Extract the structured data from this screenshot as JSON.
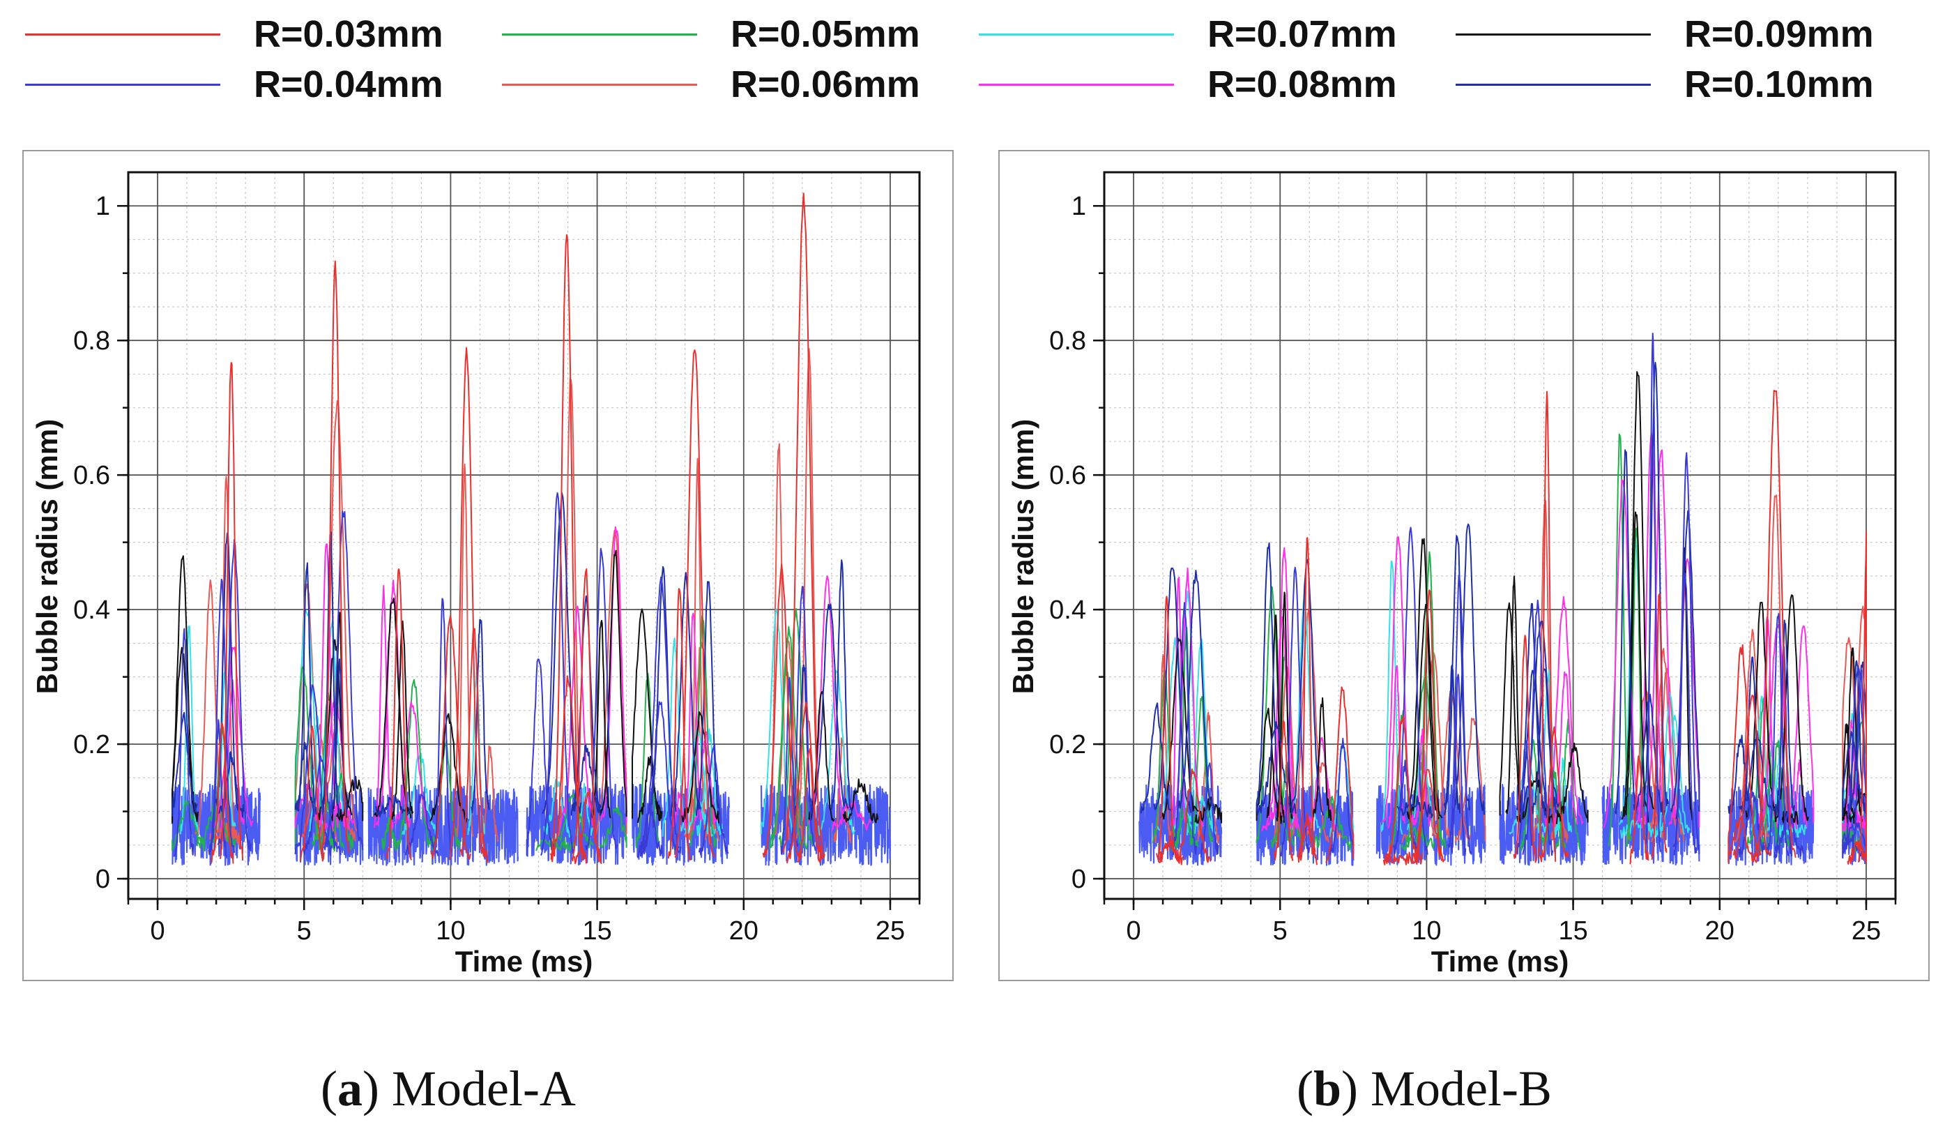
{
  "legend": {
    "items": [
      {
        "label": "R=0.03mm",
        "color": "#e8312f"
      },
      {
        "label": "R=0.04mm",
        "color": "#3a3ad6"
      },
      {
        "label": "R=0.05mm",
        "color": "#22b14c"
      },
      {
        "label": "R=0.06mm",
        "color": "#e85a55"
      },
      {
        "label": "R=0.07mm",
        "color": "#36e0e8"
      },
      {
        "label": "R=0.08mm",
        "color": "#ff2ee8"
      },
      {
        "label": "R=0.09mm",
        "color": "#111111"
      },
      {
        "label": "R=0.10mm",
        "color": "#1e2fa8"
      }
    ]
  },
  "captions": {
    "a": {
      "letter": "a",
      "text": "Model-A"
    },
    "b": {
      "letter": "b",
      "text": "Model-B"
    }
  },
  "chart_data": [
    {
      "type": "line",
      "panel": "(a) Model-A",
      "xlabel": "Time (ms)",
      "ylabel": "Bubble radius (mm)",
      "xlim": [
        -1,
        26
      ],
      "ylim": [
        -0.03,
        1.05
      ],
      "xticks": [
        0,
        5,
        10,
        15,
        20,
        25
      ],
      "yticks": [
        0,
        0.2,
        0.4,
        0.6,
        0.8,
        1
      ],
      "grid": true,
      "bursts": [
        {
          "t0": 0.5,
          "t1": 3.5,
          "peak": 0.77,
          "peak_t": 2.4,
          "blue_peak": 0.52
        },
        {
          "t0": 4.7,
          "t1": 7.0,
          "peak": 0.91,
          "peak_t": 6.1,
          "blue_peak": 0.56
        },
        {
          "t0": 7.2,
          "t1": 12.3,
          "peak": 0.78,
          "peak_t": 10.4,
          "blue_peak": 0.45
        },
        {
          "t0": 12.6,
          "t1": 16.0,
          "peak": 0.96,
          "peak_t": 14.0,
          "blue_peak": 0.57
        },
        {
          "t0": 16.2,
          "t1": 19.5,
          "peak": 0.79,
          "peak_t": 18.4,
          "blue_peak": 0.49
        },
        {
          "t0": 20.6,
          "t1": 25.0,
          "peak": 1.01,
          "peak_t": 22.1,
          "blue_peak": 0.51
        }
      ],
      "series": [
        {
          "name": "R=0.03mm",
          "color": "#e8312f",
          "base": 0.03
        },
        {
          "name": "R=0.04mm",
          "color": "#3a3ad6",
          "base": 0.04
        },
        {
          "name": "R=0.05mm",
          "color": "#22b14c",
          "base": 0.05
        },
        {
          "name": "R=0.06mm",
          "color": "#e85a55",
          "base": 0.06
        },
        {
          "name": "R=0.07mm",
          "color": "#36e0e8",
          "base": 0.07
        },
        {
          "name": "R=0.08mm",
          "color": "#ff2ee8",
          "base": 0.08
        },
        {
          "name": "R=0.09mm",
          "color": "#111111",
          "base": 0.09
        },
        {
          "name": "R=0.10mm",
          "color": "#1e2fa8",
          "base": 0.1
        }
      ]
    },
    {
      "type": "line",
      "panel": "(b) Model-B",
      "xlabel": "Time (ms)",
      "ylabel": "Bubble radius (mm)",
      "xlim": [
        -1,
        26
      ],
      "ylim": [
        -0.03,
        1.05
      ],
      "xticks": [
        0,
        5,
        10,
        15,
        20,
        25
      ],
      "yticks": [
        0,
        0.2,
        0.4,
        0.6,
        0.8,
        1
      ],
      "grid": true,
      "bursts": [
        {
          "t0": 0.2,
          "t1": 3.0,
          "peak": 0.42,
          "peak_t": 1.1,
          "blue_peak": 0.47
        },
        {
          "t0": 4.2,
          "t1": 7.5,
          "peak": 0.51,
          "peak_t": 6.0,
          "blue_peak": 0.52
        },
        {
          "t0": 8.3,
          "t1": 12.0,
          "peak": 0.43,
          "peak_t": 10.2,
          "blue_peak": 0.55
        },
        {
          "t0": 12.5,
          "t1": 15.5,
          "peak": 0.72,
          "peak_t": 14.0,
          "blue_peak": 0.45
        },
        {
          "t0": 16.0,
          "t1": 19.3,
          "peak": 0.43,
          "peak_t": 18.0,
          "blue_peak": 0.85
        },
        {
          "t0": 20.3,
          "t1": 23.2,
          "peak": 0.73,
          "peak_t": 21.9,
          "blue_peak": 0.43
        },
        {
          "t0": 24.2,
          "t1": 25.0,
          "peak": 0.51,
          "peak_t": 24.9,
          "blue_peak": 0.35
        }
      ],
      "series": [
        {
          "name": "R=0.03mm",
          "color": "#e8312f",
          "base": 0.03
        },
        {
          "name": "R=0.04mm",
          "color": "#3a3ad6",
          "base": 0.04
        },
        {
          "name": "R=0.05mm",
          "color": "#22b14c",
          "base": 0.05
        },
        {
          "name": "R=0.06mm",
          "color": "#e85a55",
          "base": 0.06
        },
        {
          "name": "R=0.07mm",
          "color": "#36e0e8",
          "base": 0.07
        },
        {
          "name": "R=0.08mm",
          "color": "#ff2ee8",
          "base": 0.08
        },
        {
          "name": "R=0.09mm",
          "color": "#111111",
          "base": 0.09
        },
        {
          "name": "R=0.10mm",
          "color": "#1e2fa8",
          "base": 0.1
        }
      ]
    }
  ]
}
